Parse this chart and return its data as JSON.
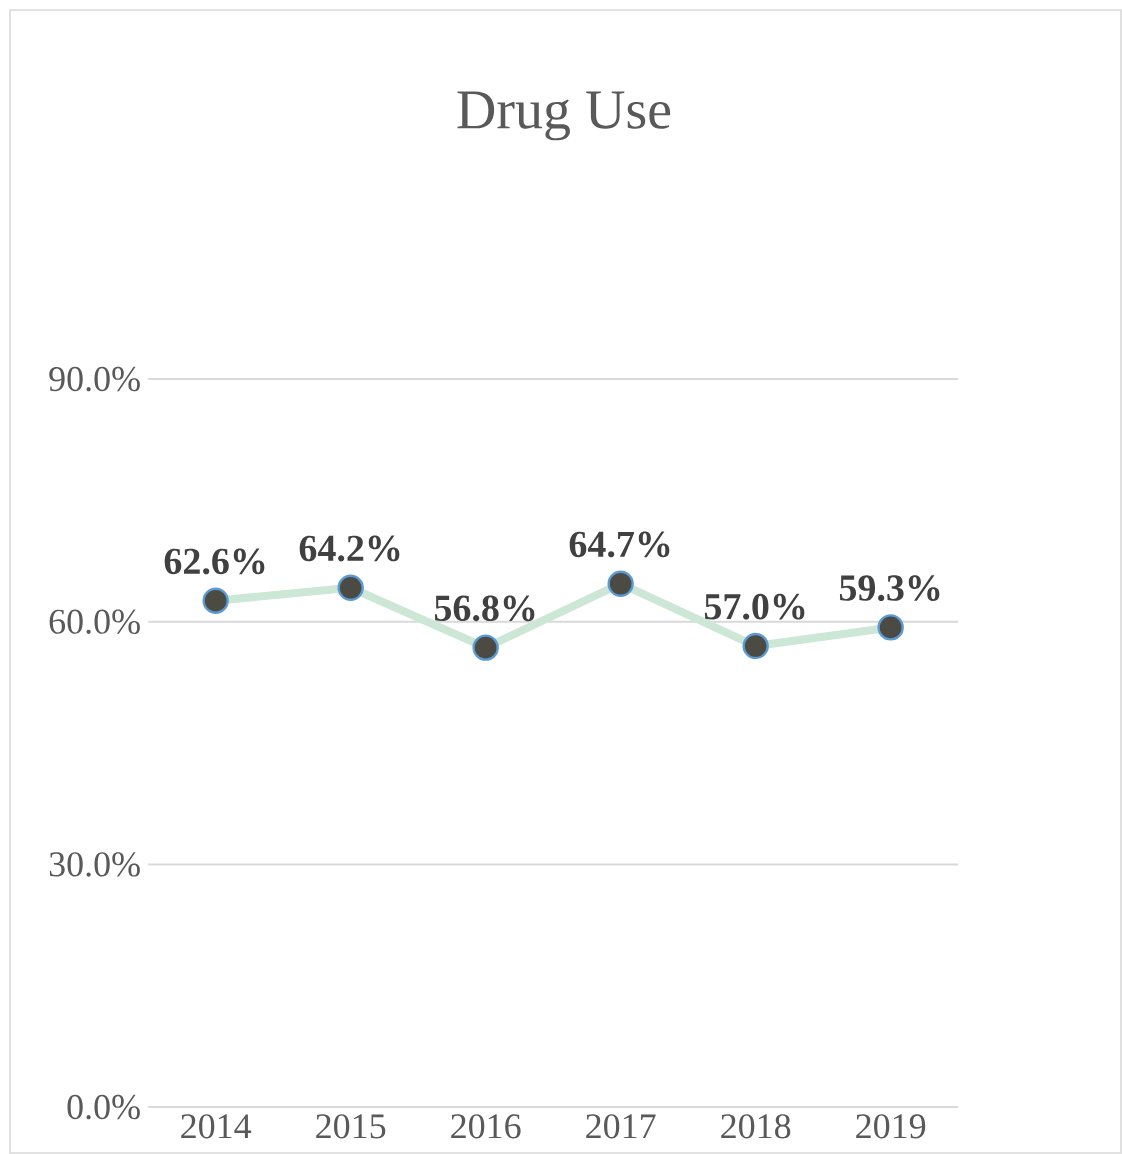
{
  "chart_data": {
    "type": "line",
    "title": "Drug Use",
    "categories": [
      "2014",
      "2015",
      "2016",
      "2017",
      "2018",
      "2019"
    ],
    "series": [
      {
        "color": "#cde7d6",
        "values": [
          62.6,
          64.2,
          56.8,
          64.7,
          57.0,
          59.3
        ],
        "value_labels": [
          "62.6%",
          "64.2%",
          "56.8%",
          "64.7%",
          "57.0%",
          "59.3%"
        ]
      }
    ],
    "ylim": [
      0,
      90
    ],
    "yticks": [
      {
        "value": 0,
        "label": "0.0%"
      },
      {
        "value": 30,
        "label": "30.0%"
      },
      {
        "value": 60,
        "label": "60.0%"
      },
      {
        "value": 90,
        "label": "90.0%"
      }
    ],
    "grid": "y",
    "marker": "circle",
    "line_style": "solid"
  }
}
